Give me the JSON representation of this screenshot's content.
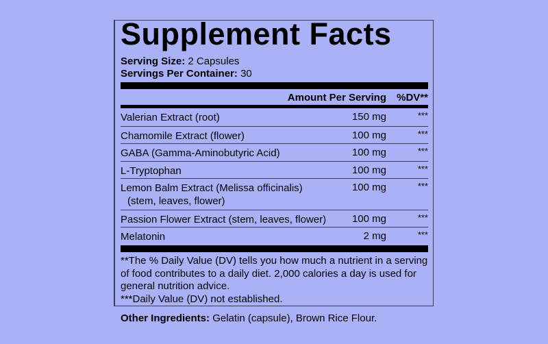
{
  "title": "Supplement Facts",
  "serving_size": {
    "label": "Serving Size:",
    "value": "2 Capsules"
  },
  "servings_per_container": {
    "label": "Servings Per Container:",
    "value": "30"
  },
  "header": {
    "amount": "Amount Per Serving",
    "dv": "%DV**"
  },
  "rows": [
    {
      "name": "Valerian Extract (root)",
      "amount": "150 mg",
      "dv": "***"
    },
    {
      "name": "Chamomile Extract (flower)",
      "amount": "100 mg",
      "dv": "***"
    },
    {
      "name": "GABA (Gamma-Aminobutyric Acid)",
      "amount": "100 mg",
      "dv": "***"
    },
    {
      "name": "L-Tryptophan",
      "amount": "100 mg",
      "dv": "***"
    },
    {
      "name": "Lemon Balm Extract (Melissa officinalis)",
      "name2": "(stem, leaves, flower)",
      "amount": "100 mg",
      "dv": "***"
    },
    {
      "name": "Passion Flower Extract (stem, leaves, flower)",
      "amount": "100 mg",
      "dv": "***"
    },
    {
      "name": "Melatonin",
      "amount": "2 mg",
      "dv": "***"
    }
  ],
  "footnote": {
    "dv_note": "**The % Daily Value (DV) tells you how much a nutrient in a serving of food contributes to a daily diet. 2,000 calories a day is used for general nutrition advice.",
    "not_established": "***Daily Value (DV) not established."
  },
  "other_ingredients": {
    "label": "Other Ingredients:",
    "value": "Gelatin (capsule), Brown Rice Flour."
  },
  "colors": {
    "background": "#abb1f6",
    "text": "#000000"
  }
}
